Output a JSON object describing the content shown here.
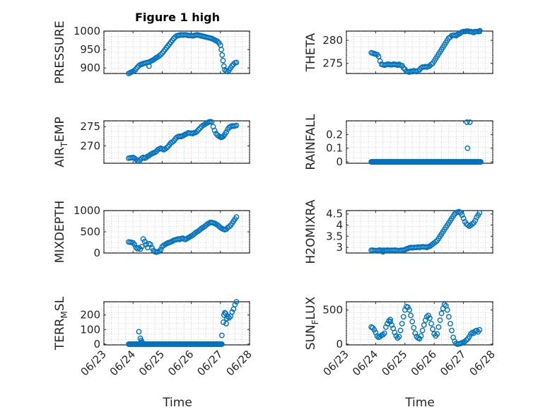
{
  "figure": {
    "title": "Figure 1 high"
  },
  "chart_data": [
    {
      "id": "pressure",
      "type": "scatter",
      "ylabel": "PRESSURE",
      "xlim": [
        0,
        5
      ],
      "ylim": [
        885,
        1000
      ],
      "yticks": [
        900,
        950,
        1000
      ],
      "xticks": [
        0,
        1,
        2,
        3,
        4,
        5
      ],
      "xticklabels": [
        "06/23",
        "06/24",
        "06/25",
        "06/26",
        "06/27",
        "06/28"
      ],
      "grid": true,
      "x": [
        0.85,
        0.9,
        0.95,
        1.0,
        1.05,
        1.1,
        1.15,
        1.2,
        1.25,
        1.3,
        1.35,
        1.4,
        1.45,
        1.5,
        1.55,
        1.6,
        1.65,
        1.7,
        1.75,
        1.8,
        1.85,
        1.9,
        1.95,
        2.0,
        2.05,
        2.1,
        2.15,
        2.2,
        2.25,
        2.3,
        2.35,
        2.4,
        2.45,
        2.5,
        2.55,
        2.6,
        2.65,
        2.7,
        2.75,
        2.8,
        2.85,
        2.9,
        2.95,
        3.0,
        3.05,
        3.1,
        3.15,
        3.2,
        3.25,
        3.3,
        3.35,
        3.4,
        3.45,
        3.5,
        3.55,
        3.6,
        3.65,
        3.7,
        3.75,
        3.8,
        3.85,
        3.9,
        3.95,
        4.0,
        4.03,
        4.06,
        4.09,
        4.12,
        4.15,
        4.2,
        4.25,
        4.3,
        4.35,
        4.4,
        4.45,
        4.5,
        4.55
      ],
      "y": [
        885,
        887,
        889,
        891,
        893,
        897,
        902,
        906,
        909,
        910,
        912,
        913,
        914,
        915,
        916,
        918,
        920,
        922,
        925,
        928,
        930,
        933,
        936,
        940,
        945,
        950,
        955,
        960,
        965,
        970,
        975,
        980,
        984,
        987,
        988,
        989,
        990,
        989,
        990,
        990,
        989,
        988,
        988,
        988,
        987,
        988,
        989,
        990,
        989,
        988,
        987,
        986,
        985,
        984,
        983,
        982,
        981,
        980,
        978,
        976,
        974,
        972,
        968,
        962,
        950,
        935,
        920,
        905,
        895,
        892,
        890,
        894,
        900,
        906,
        910,
        914,
        915
      ],
      "extra": [
        [
          1.55,
          905
        ]
      ]
    },
    {
      "id": "theta",
      "type": "scatter",
      "ylabel": "THETA",
      "xlim": [
        0,
        5
      ],
      "ylim": [
        272.8,
        282
      ],
      "yticks": [
        275,
        280
      ],
      "xticks": [
        0,
        1,
        2,
        3,
        4,
        5
      ],
      "xticklabels": [
        "06/23",
        "06/24",
        "06/25",
        "06/26",
        "06/27",
        "06/28"
      ],
      "grid": true,
      "x": [
        0.85,
        0.9,
        0.95,
        1.0,
        1.05,
        1.1,
        1.15,
        1.2,
        1.25,
        1.3,
        1.35,
        1.4,
        1.45,
        1.5,
        1.55,
        1.6,
        1.65,
        1.7,
        1.75,
        1.8,
        1.85,
        1.9,
        1.95,
        2.0,
        2.05,
        2.1,
        2.15,
        2.2,
        2.25,
        2.3,
        2.35,
        2.4,
        2.45,
        2.5,
        2.55,
        2.6,
        2.65,
        2.7,
        2.75,
        2.8,
        2.85,
        2.9,
        2.95,
        3.0,
        3.05,
        3.1,
        3.15,
        3.2,
        3.25,
        3.3,
        3.35,
        3.4,
        3.45,
        3.5,
        3.55,
        3.6,
        3.65,
        3.7,
        3.75,
        3.8,
        3.85,
        3.9,
        3.95,
        4.0,
        4.05,
        4.1,
        4.15,
        4.2,
        4.25,
        4.3,
        4.35,
        4.4,
        4.45,
        4.5,
        4.55
      ],
      "y": [
        277.3,
        277.2,
        277.1,
        277.0,
        276.9,
        276.5,
        275.5,
        274.8,
        274.7,
        274.6,
        274.7,
        274.8,
        274.8,
        274.7,
        274.7,
        274.8,
        274.8,
        274.7,
        274.6,
        274.8,
        274.6,
        274.5,
        274.0,
        273.7,
        273.3,
        273.2,
        273.1,
        273.3,
        273.2,
        273.4,
        273.3,
        273.2,
        273.4,
        273.6,
        274.0,
        274.2,
        274.2,
        274.3,
        274.2,
        274.3,
        274.5,
        274.8,
        275.0,
        275.5,
        276.0,
        276.5,
        277.0,
        277.5,
        278.0,
        278.5,
        279.0,
        279.5,
        280.0,
        280.5,
        280.7,
        281.0,
        281.1,
        281.1,
        281.0,
        281.3,
        281.4,
        281.6,
        281.8,
        281.9,
        281.9,
        282.0,
        282.0,
        281.9,
        281.9,
        281.8,
        281.7,
        281.9,
        281.9,
        281.9,
        281.9
      ],
      "extra": [
        [
          4.56,
          282.1
        ]
      ]
    },
    {
      "id": "air-temp",
      "type": "scatter",
      "ylabel": "AIR_TEMP",
      "ylabel_parts": {
        "base": "AIR",
        "sub": "T",
        "rest": "EMP"
      },
      "xlim": [
        0,
        5
      ],
      "ylim": [
        265.5,
        276.5
      ],
      "yticks": [
        270,
        275
      ],
      "xticks": [
        0,
        1,
        2,
        3,
        4,
        5
      ],
      "xticklabels": [
        "06/23",
        "06/24",
        "06/25",
        "06/26",
        "06/27",
        "06/28"
      ],
      "grid": true,
      "x": [
        0.85,
        0.9,
        0.95,
        1.0,
        1.05,
        1.1,
        1.15,
        1.2,
        1.25,
        1.3,
        1.35,
        1.4,
        1.45,
        1.5,
        1.55,
        1.6,
        1.65,
        1.7,
        1.75,
        1.8,
        1.85,
        1.9,
        1.95,
        2.0,
        2.05,
        2.1,
        2.15,
        2.2,
        2.25,
        2.3,
        2.35,
        2.4,
        2.45,
        2.5,
        2.55,
        2.6,
        2.65,
        2.7,
        2.75,
        2.8,
        2.85,
        2.9,
        2.95,
        3.0,
        3.05,
        3.1,
        3.15,
        3.2,
        3.25,
        3.3,
        3.35,
        3.4,
        3.45,
        3.5,
        3.55,
        3.6,
        3.65,
        3.7,
        3.75,
        3.8,
        3.85,
        3.9,
        3.95,
        4.0,
        4.03,
        4.06,
        4.1,
        4.15,
        4.2,
        4.25,
        4.3,
        4.35,
        4.4,
        4.45,
        4.5,
        4.55
      ],
      "y": [
        266.8,
        266.9,
        266.9,
        267.0,
        266.8,
        266.5,
        266.2,
        266.0,
        266.4,
        266.8,
        267.0,
        266.8,
        267.0,
        267.3,
        267.5,
        267.8,
        268.0,
        268.2,
        268.3,
        268.6,
        269.0,
        269.2,
        269.4,
        269.2,
        269.0,
        269.2,
        269.5,
        269.8,
        270.3,
        270.8,
        271.0,
        271.3,
        271.8,
        272.2,
        272.4,
        272.5,
        272.4,
        272.6,
        272.8,
        273.0,
        273.2,
        273.4,
        273.3,
        273.3,
        273.2,
        273.4,
        273.5,
        273.8,
        274.2,
        274.6,
        275.0,
        275.3,
        275.5,
        275.8,
        276.0,
        276.2,
        276.3,
        276.2,
        275.0,
        274.0,
        273.2,
        272.8,
        272.5,
        272.3,
        272.2,
        272.3,
        272.5,
        273.0,
        273.6,
        274.3,
        274.8,
        275.0,
        275.2,
        275.1,
        275.2,
        275.3
      ],
      "extra": []
    },
    {
      "id": "rainfall",
      "type": "scatter",
      "ylabel": "RAINFALL",
      "xlim": [
        0,
        5
      ],
      "ylim": [
        -0.01,
        0.3
      ],
      "yticks": [
        0,
        0.1,
        0.2
      ],
      "yticklabels": [
        "0",
        "0.1",
        "0.2"
      ],
      "xticks": [
        0,
        1,
        2,
        3,
        4,
        5
      ],
      "xticklabels": [
        "06/23",
        "06/24",
        "06/25",
        "06/26",
        "06/27",
        "06/28"
      ],
      "grid": true,
      "zero_range": [
        0.85,
        4.6,
        0.02
      ],
      "x": [
        4.12,
        4.22,
        4.14,
        4.18
      ],
      "y": [
        0.29,
        0.29,
        0.1,
        0.0
      ],
      "extra": []
    },
    {
      "id": "mixdepth",
      "type": "scatter",
      "ylabel": "MIXDEPTH",
      "xlim": [
        0,
        5
      ],
      "ylim": [
        0,
        1000
      ],
      "yticks": [
        0,
        500,
        1000
      ],
      "xticks": [
        0,
        1,
        2,
        3,
        4,
        5
      ],
      "xticklabels": [
        "06/23",
        "06/24",
        "06/25",
        "06/26",
        "06/27",
        "06/28"
      ],
      "grid": true,
      "x": [
        0.85,
        0.9,
        0.95,
        1.0,
        1.05,
        1.1,
        1.15,
        1.2,
        1.25,
        1.3,
        1.35,
        1.4,
        1.45,
        1.5,
        1.55,
        1.6,
        1.65,
        1.7,
        1.75,
        1.8,
        1.85,
        1.9,
        1.95,
        2.0,
        2.05,
        2.1,
        2.15,
        2.2,
        2.25,
        2.3,
        2.35,
        2.4,
        2.45,
        2.5,
        2.55,
        2.6,
        2.65,
        2.7,
        2.75,
        2.8,
        2.85,
        2.9,
        2.95,
        3.0,
        3.05,
        3.1,
        3.15,
        3.2,
        3.25,
        3.3,
        3.35,
        3.4,
        3.45,
        3.5,
        3.55,
        3.6,
        3.65,
        3.7,
        3.75,
        3.8,
        3.85,
        3.9,
        3.95,
        4.0,
        4.05,
        4.1,
        4.15,
        4.2,
        4.25,
        4.3,
        4.35,
        4.4,
        4.45,
        4.5,
        4.55
      ],
      "y": [
        260,
        255,
        250,
        240,
        200,
        130,
        100,
        120,
        90,
        150,
        330,
        270,
        200,
        130,
        220,
        200,
        120,
        60,
        30,
        20,
        30,
        40,
        80,
        150,
        180,
        200,
        220,
        240,
        250,
        260,
        280,
        300,
        310,
        320,
        330,
        320,
        340,
        350,
        330,
        320,
        340,
        360,
        380,
        400,
        420,
        450,
        480,
        500,
        520,
        550,
        580,
        600,
        620,
        650,
        680,
        700,
        720,
        720,
        710,
        700,
        680,
        660,
        630,
        600,
        580,
        560,
        550,
        560,
        600,
        620,
        650,
        700,
        750,
        800,
        850
      ],
      "extra": []
    },
    {
      "id": "h2omixra",
      "type": "scatter",
      "ylabel": "H2OMIXRA",
      "xlim": [
        0,
        5
      ],
      "ylim": [
        2.75,
        4.65
      ],
      "yticks": [
        3,
        3.5,
        4,
        4.5
      ],
      "yticklabels": [
        "3",
        "3.5",
        "4",
        "4.5"
      ],
      "xticks": [
        0,
        1,
        2,
        3,
        4,
        5
      ],
      "xticklabels": [
        "06/23",
        "06/24",
        "06/25",
        "06/26",
        "06/27",
        "06/28"
      ],
      "grid": true,
      "x": [
        0.85,
        0.9,
        0.95,
        1.0,
        1.05,
        1.1,
        1.15,
        1.2,
        1.25,
        1.3,
        1.35,
        1.4,
        1.45,
        1.5,
        1.55,
        1.6,
        1.65,
        1.7,
        1.75,
        1.8,
        1.85,
        1.9,
        1.95,
        2.0,
        2.05,
        2.1,
        2.15,
        2.2,
        2.25,
        2.3,
        2.35,
        2.4,
        2.45,
        2.5,
        2.55,
        2.6,
        2.65,
        2.7,
        2.75,
        2.8,
        2.85,
        2.9,
        2.95,
        3.0,
        3.05,
        3.1,
        3.15,
        3.2,
        3.25,
        3.3,
        3.35,
        3.4,
        3.45,
        3.5,
        3.55,
        3.6,
        3.65,
        3.7,
        3.75,
        3.8,
        3.85,
        3.9,
        3.95,
        4.0,
        4.05,
        4.1,
        4.15,
        4.2,
        4.25,
        4.3,
        4.35,
        4.4,
        4.45,
        4.5,
        4.55
      ],
      "y": [
        2.87,
        2.87,
        2.86,
        2.86,
        2.85,
        2.87,
        2.88,
        2.86,
        2.87,
        2.87,
        2.86,
        2.88,
        2.86,
        2.87,
        2.87,
        2.86,
        2.88,
        2.87,
        2.86,
        2.85,
        2.87,
        2.87,
        2.88,
        2.9,
        2.93,
        2.95,
        2.98,
        3.0,
        2.98,
        3.0,
        3.0,
        3.0,
        3.02,
        3.0,
        3.02,
        3.03,
        3.02,
        3.02,
        3.0,
        3.03,
        3.05,
        3.1,
        3.15,
        3.2,
        3.25,
        3.3,
        3.4,
        3.5,
        3.6,
        3.7,
        3.8,
        3.9,
        4.0,
        4.1,
        4.2,
        4.3,
        4.4,
        4.5,
        4.55,
        4.58,
        4.6,
        4.55,
        4.45,
        4.3,
        4.15,
        4.05,
        4.0,
        3.95,
        4.0,
        4.05,
        4.1,
        4.2,
        4.35,
        4.45,
        4.55
      ],
      "extra": [
        [
          1.25,
          2.8
        ]
      ]
    },
    {
      "id": "terr-msl",
      "type": "scatter",
      "ylabel": "TERR_MSL",
      "ylabel_parts": {
        "base": "TERR",
        "sub": "M",
        "rest": "SL"
      },
      "xlim": [
        0,
        5
      ],
      "ylim": [
        -5,
        290
      ],
      "yticks": [
        0,
        100,
        200
      ],
      "xticks": [
        0,
        1,
        2,
        3,
        4,
        5
      ],
      "xticklabels": [
        "06/23",
        "06/24",
        "06/25",
        "06/26",
        "06/27",
        "06/28"
      ],
      "grid": true,
      "zero_range": [
        0.85,
        4.05,
        0.025
      ],
      "x": [
        1.2,
        1.25,
        1.28,
        1.3,
        1.32,
        1.34,
        4.05,
        4.1,
        4.12,
        4.15,
        4.18,
        4.2,
        4.22,
        4.25,
        4.3,
        4.35,
        4.4,
        4.45,
        4.5,
        4.55
      ],
      "y": [
        85,
        40,
        25,
        15,
        10,
        5,
        60,
        150,
        200,
        215,
        210,
        140,
        175,
        190,
        180,
        190,
        220,
        240,
        270,
        290
      ],
      "extra": []
    },
    {
      "id": "sun-flux",
      "type": "scatter",
      "ylabel": "SUN_FLUX",
      "ylabel_parts": {
        "base": "SUN",
        "sub": "F",
        "rest": "LUX"
      },
      "xlim": [
        0,
        5
      ],
      "ylim": [
        -10,
        620
      ],
      "yticks": [
        0,
        500
      ],
      "xticks": [
        0,
        1,
        2,
        3,
        4,
        5
      ],
      "xticklabels": [
        "06/23",
        "06/24",
        "06/25",
        "06/26",
        "06/27",
        "06/28"
      ],
      "grid": true,
      "x": [
        0.85,
        0.9,
        0.95,
        1.0,
        1.05,
        1.1,
        1.15,
        1.2,
        1.25,
        1.3,
        1.35,
        1.4,
        1.45,
        1.5,
        1.55,
        1.6,
        1.65,
        1.7,
        1.75,
        1.8,
        1.85,
        1.9,
        1.95,
        2.0,
        2.05,
        2.1,
        2.15,
        2.2,
        2.25,
        2.3,
        2.35,
        2.4,
        2.45,
        2.5,
        2.55,
        2.6,
        2.65,
        2.7,
        2.75,
        2.8,
        2.85,
        2.9,
        2.95,
        3.0,
        3.05,
        3.1,
        3.15,
        3.2,
        3.25,
        3.3,
        3.35,
        3.4,
        3.45,
        3.5,
        3.55,
        3.6,
        3.65,
        3.7,
        3.75,
        3.8,
        3.85,
        3.9,
        3.95,
        4.0,
        4.05,
        4.1,
        4.15,
        4.2,
        4.25,
        4.3,
        4.35,
        4.4,
        4.45,
        4.5,
        4.55
      ],
      "y": [
        250,
        240,
        210,
        170,
        120,
        100,
        110,
        130,
        140,
        160,
        250,
        300,
        340,
        330,
        280,
        230,
        170,
        120,
        90,
        110,
        200,
        300,
        400,
        500,
        550,
        540,
        500,
        420,
        330,
        240,
        160,
        110,
        90,
        80,
        120,
        200,
        280,
        350,
        400,
        420,
        380,
        300,
        220,
        150,
        120,
        150,
        250,
        350,
        450,
        520,
        580,
        560,
        500,
        400,
        300,
        200,
        100,
        40,
        10,
        0,
        5,
        10,
        20,
        30,
        40,
        60,
        80,
        110,
        150,
        170,
        160,
        190,
        200,
        180,
        210
      ],
      "extra": [
        [
          1.5,
          360
        ]
      ]
    }
  ],
  "xlabel": "Time"
}
